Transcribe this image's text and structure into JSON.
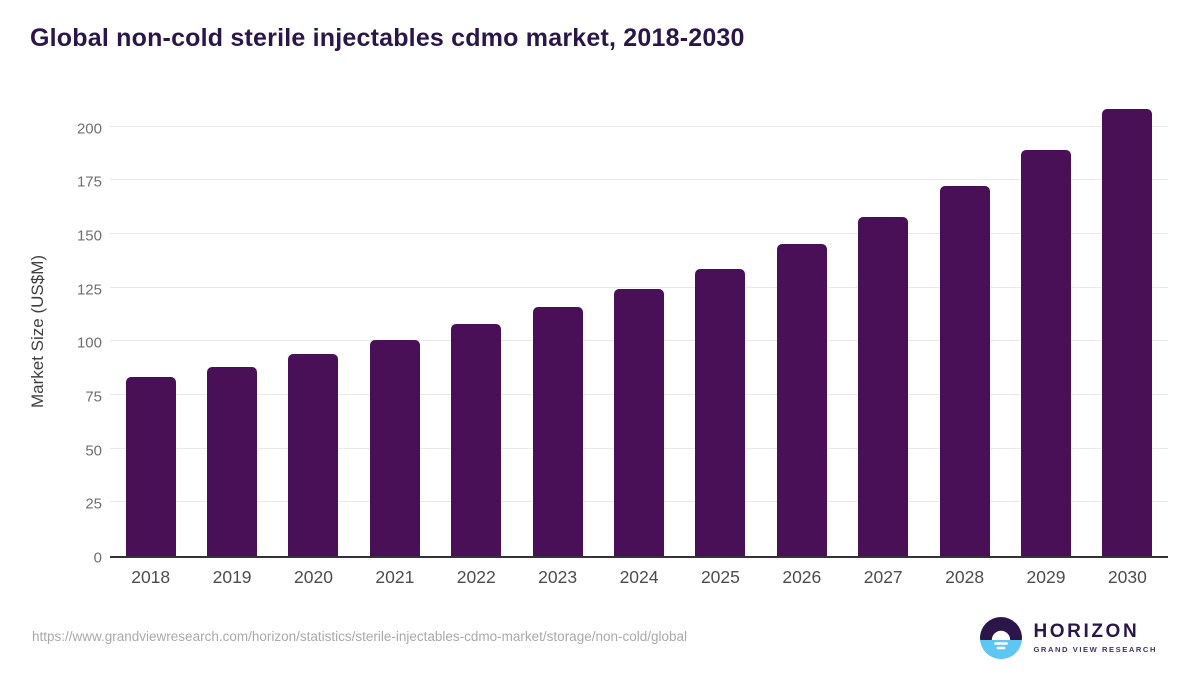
{
  "title": "Global non-cold sterile injectables cdmo market, 2018-2030",
  "chart_data": {
    "type": "bar",
    "title": "Global non-cold sterile injectables cdmo market, 2018-2030",
    "categories": [
      "2018",
      "2019",
      "2020",
      "2021",
      "2022",
      "2023",
      "2024",
      "2025",
      "2026",
      "2027",
      "2028",
      "2029",
      "2030"
    ],
    "values": [
      83.5,
      88.2,
      93.9,
      100.6,
      107.9,
      115.8,
      124.3,
      133.6,
      145.3,
      157.7,
      172.3,
      189.1,
      208.1
    ],
    "xlabel": "",
    "ylabel": "Market Size (US$M)",
    "yticks": [
      0,
      25,
      50,
      75,
      100,
      125,
      150,
      175,
      200
    ],
    "ylim": [
      0,
      211
    ],
    "grid": true,
    "legend": false,
    "bar_color": "#491057"
  },
  "colors": {
    "bar": "#491057",
    "title_text": "#2b164a",
    "axis_line": "#34303c",
    "gridline": "#e9e9e9",
    "tick_label": "#6f6f6f",
    "x_label": "#4c4c4c",
    "url_text": "#a9a9a9",
    "logo_purple": "#2b164a",
    "logo_blue": "#5ec6f2"
  },
  "footer": {
    "source_url": "https://www.grandviewresearch.com/horizon/statistics/sterile-injectables-cdmo-market/storage/non-cold/global",
    "logo": {
      "name": "HORIZON",
      "subtitle": "GRAND VIEW RESEARCH"
    }
  }
}
